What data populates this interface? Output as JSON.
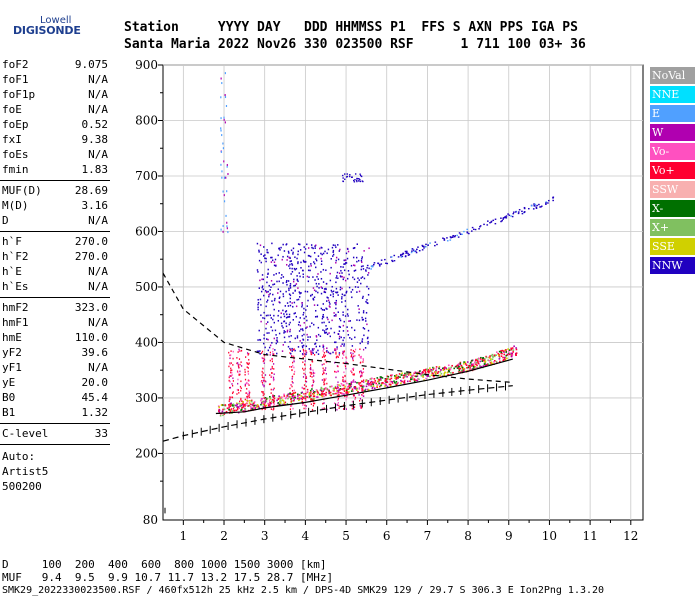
{
  "brand": {
    "line1": "Lowell",
    "line2": "DIGISONDE"
  },
  "header": {
    "row1": "Station     YYYY DAY   DDD HHMMSS P1  FFS S AXN PPS IGA PS",
    "row2": "Santa Maria 2022 Nov26 330 023500 RSF      1 711 100 03+ 36"
  },
  "params": [
    {
      "name": "foF2",
      "value": "9.075"
    },
    {
      "name": "foF1",
      "value": "N/A"
    },
    {
      "name": "foF1p",
      "value": "N/A"
    },
    {
      "name": "foE",
      "value": "N/A"
    },
    {
      "name": "foEp",
      "value": "0.52"
    },
    {
      "name": "fxI",
      "value": "9.38"
    },
    {
      "name": "foEs",
      "value": "N/A"
    },
    {
      "name": "fmin",
      "value": "1.83"
    },
    {
      "name": "MUF(D)",
      "value": "28.69"
    },
    {
      "name": "M(D)",
      "value": "3.16"
    },
    {
      "name": "D",
      "value": "N/A"
    },
    {
      "name": "h`F",
      "value": "270.0"
    },
    {
      "name": "h`F2",
      "value": "270.0"
    },
    {
      "name": "h`E",
      "value": "N/A"
    },
    {
      "name": "h`Es",
      "value": "N/A"
    },
    {
      "name": "hmF2",
      "value": "323.0"
    },
    {
      "name": "hmF1",
      "value": "N/A"
    },
    {
      "name": "hmE",
      "value": "110.0"
    },
    {
      "name": "yF2",
      "value": "39.6"
    },
    {
      "name": "yF1",
      "value": "N/A"
    },
    {
      "name": "yE",
      "value": "20.0"
    },
    {
      "name": "B0",
      "value": "45.4"
    },
    {
      "name": "B1",
      "value": "1.32"
    },
    {
      "name": "C-level",
      "value": "33"
    }
  ],
  "auto": {
    "line1": "Auto:",
    "line2": "Artist5",
    "line3": "500200"
  },
  "legend": [
    {
      "label": "NoVal",
      "color": "#a0a0a0"
    },
    {
      "label": "NNE",
      "color": "#00e0ff"
    },
    {
      "label": "E",
      "color": "#50a0ff"
    },
    {
      "label": "W",
      "color": "#b000b0"
    },
    {
      "label": "Vo-",
      "color": "#ff50c0"
    },
    {
      "label": "Vo+",
      "color": "#ff0030"
    },
    {
      "label": "SSW",
      "color": "#f8b0b0"
    },
    {
      "label": "X-",
      "color": "#007000"
    },
    {
      "label": "X+",
      "color": "#80c060"
    },
    {
      "label": "SSE",
      "color": "#d0d000"
    },
    {
      "label": "NNW",
      "color": "#2000c0"
    }
  ],
  "chart_data": {
    "type": "scatter",
    "xlabel": "",
    "ylabel": "",
    "xlim": [
      0.5,
      12.3
    ],
    "ylim": [
      80,
      900
    ],
    "x_ticks": [
      1,
      2,
      3,
      4,
      5,
      6,
      7,
      8,
      9,
      10,
      11,
      12
    ],
    "y_ticks": [
      200,
      300,
      400,
      500,
      600,
      700,
      800,
      900
    ],
    "y_bottom_label": "80",
    "profile_curve": {
      "x": [
        0.5,
        1,
        2,
        3,
        4,
        5,
        6,
        7,
        8,
        9.1
      ],
      "y": [
        222,
        232,
        248,
        262,
        274,
        286,
        296,
        306,
        314,
        322
      ]
    },
    "virtual_height_trace": {
      "x": [
        1.8,
        2.5,
        3,
        4,
        5,
        6,
        7,
        8,
        9.1
      ],
      "y": [
        272,
        275,
        282,
        292,
        305,
        318,
        332,
        348,
        370
      ]
    },
    "dashed_curve": {
      "x": [
        0.5,
        1,
        2,
        3,
        4,
        5,
        6,
        7,
        8,
        9.1
      ],
      "y": [
        525,
        460,
        400,
        378,
        370,
        362,
        352,
        342,
        334,
        328
      ]
    }
  },
  "footer": {
    "d_row": "D     100  200  400  600  800 1000 1500 3000 [km]",
    "muf_row": "MUF   9.4  9.5  9.9 10.7 11.7 13.2 17.5 28.7 [MHz]",
    "info_row": "SMK29_2022330023500.RSF / 460fx512h 25 kHz 2.5 km / DPS-4D SMK29 129 / 29.7 S 306.3 E Ion2Png 1.3.20"
  }
}
